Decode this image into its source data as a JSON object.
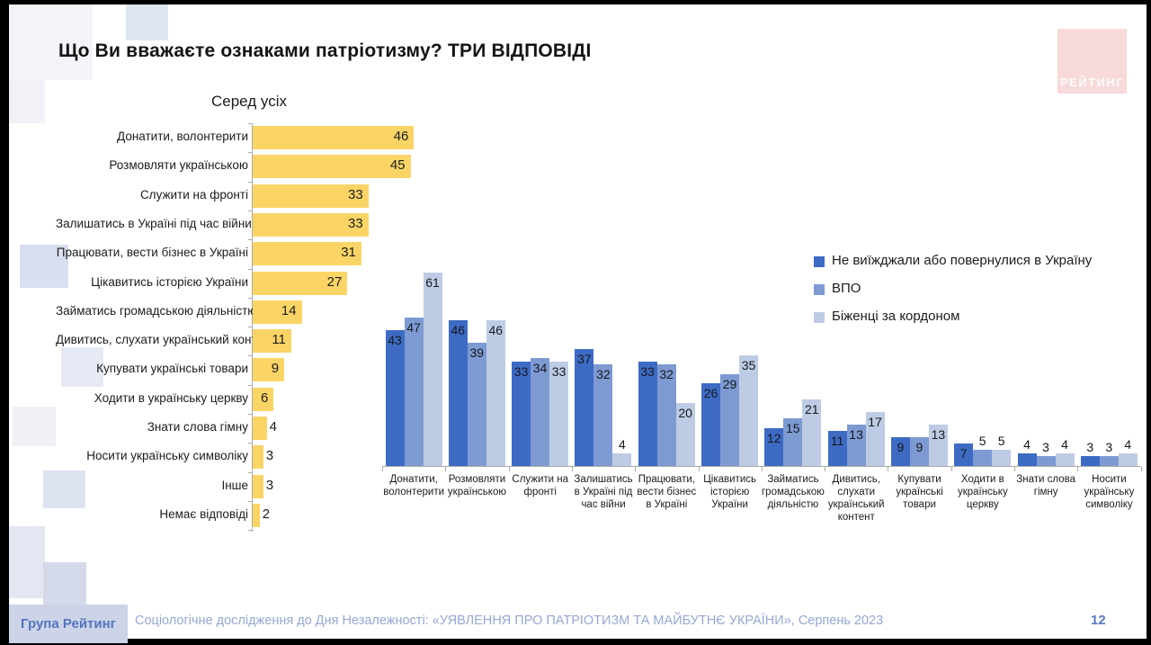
{
  "slide": {
    "title": "Що Ви вважаєте ознаками патріотизму? ТРИ ВІДПОВІДІ",
    "logo_text": "РЕЙТИНГ",
    "page_number": "12",
    "footer": {
      "brand": "Група Рейтинг",
      "source": "Соціологічне дослідження до Дня Незалежності: «УЯВЛЕННЯ ПРО ПАТРІОТИЗМ ТА МАЙБУТНЄ УКРАЇНИ», Серпень 2023"
    }
  },
  "colors": {
    "yellow_bar": "#FAD566",
    "series_stayed": "#3D6BC4",
    "series_idp": "#7E9AD3",
    "series_refugees": "#BDCCE4"
  },
  "chart_data": [
    {
      "type": "bar",
      "orientation": "horizontal",
      "title": "Серед усіх",
      "categories": [
        "Донатити, волонтерити",
        "Розмовляти українською",
        "Служити на фронті",
        "Залишатись в Україні під час війни",
        "Працювати, вести бізнес в Україні",
        "Цікавитись історією України",
        "Займатись громадською діяльністю",
        "Дивитись, слухати український контент",
        "Купувати українські товари",
        "Ходити в українську церкву",
        "Знати слова гімну",
        "Носити українську символіку",
        "Інше",
        "Немає відповіді"
      ],
      "values": [
        46,
        45,
        33,
        33,
        31,
        27,
        14,
        11,
        9,
        6,
        4,
        3,
        3,
        2
      ],
      "bar_color": "#FAD566",
      "xlim": [
        0,
        50
      ],
      "grid": false,
      "value_labels": "inside-end"
    },
    {
      "type": "bar",
      "orientation": "vertical",
      "categories": [
        "Донатити, волонтерити",
        "Розмовляти українською",
        "Служити на фронті",
        "Залишатись в Україні під час війни",
        "Працювати, вести бізнес в Україні",
        "Цікавитись історією України",
        "Займатись громадською діяльністю",
        "Дивитись, слухати український контент",
        "Купувати українські товари",
        "Ходити в українську церкву",
        "Знати слова гімну",
        "Носити українську символіку"
      ],
      "series": [
        {
          "name": "Не виїжджали або повернулися в Україну",
          "color": "#3D6BC4",
          "values": [
            43,
            46,
            33,
            37,
            33,
            26,
            12,
            11,
            9,
            7,
            4,
            3
          ]
        },
        {
          "name": "ВПО",
          "color": "#7E9AD3",
          "values": [
            47,
            39,
            34,
            32,
            32,
            29,
            15,
            13,
            9,
            5,
            3,
            3
          ]
        },
        {
          "name": "Біженці за кордоном",
          "color": "#BDCCE4",
          "values": [
            61,
            46,
            33,
            4,
            20,
            35,
            21,
            17,
            13,
            5,
            4,
            4
          ]
        }
      ],
      "ylim": [
        0,
        65
      ],
      "grid": false,
      "legend_position": "top-right",
      "value_labels": "above-or-inside-top"
    }
  ]
}
